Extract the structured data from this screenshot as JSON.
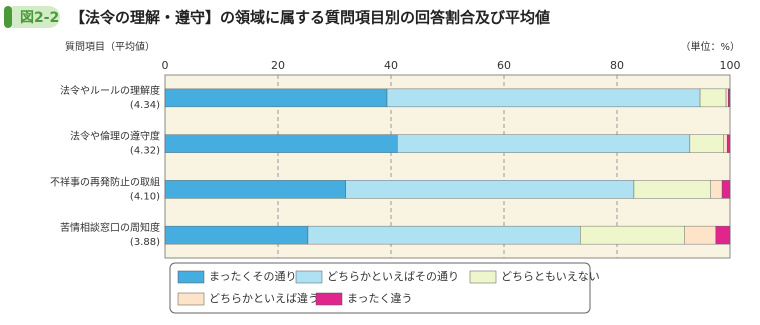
{
  "badge": "図2-2",
  "chart_data": {
    "type": "stacked-bar-horizontal",
    "title": "【法令の理解・遵守】の領域に属する質問項目別の回答割合及び平均値",
    "y_label": "質問項目（平均値）",
    "unit_label": "（単位：%）",
    "categories": [
      "法令やルールの理解度",
      "法令や倫理の遵守度",
      "不祥事の再発防止の取組",
      "苦情相談窓口の周知度"
    ],
    "category_notes": [
      "(4.34)",
      "(4.32)",
      "(4.10)",
      "(3.88)"
    ],
    "series": [
      {
        "name": "まったくその通り",
        "color": "#45ade0",
        "values": [
          39.3,
          41.1,
          32.0,
          25.3
        ]
      },
      {
        "name": "どちらかといえばその通り",
        "color": "#aee2f2",
        "values": [
          55.4,
          51.8,
          51.0,
          48.2
        ]
      },
      {
        "name": "どちらともいえない",
        "color": "#eef6cc",
        "values": [
          4.6,
          5.9,
          13.6,
          18.5
        ]
      },
      {
        "name": "どちらかといえば違う",
        "color": "#fde3c8",
        "values": [
          0.4,
          0.7,
          2.0,
          5.5
        ]
      },
      {
        "name": "まったく違う",
        "color": "#e0268c",
        "values": [
          0.3,
          0.5,
          1.4,
          2.5
        ]
      }
    ],
    "xlim": [
      0,
      100
    ],
    "xticks": [
      0,
      20,
      40,
      60,
      80,
      100
    ],
    "grid": true
  }
}
